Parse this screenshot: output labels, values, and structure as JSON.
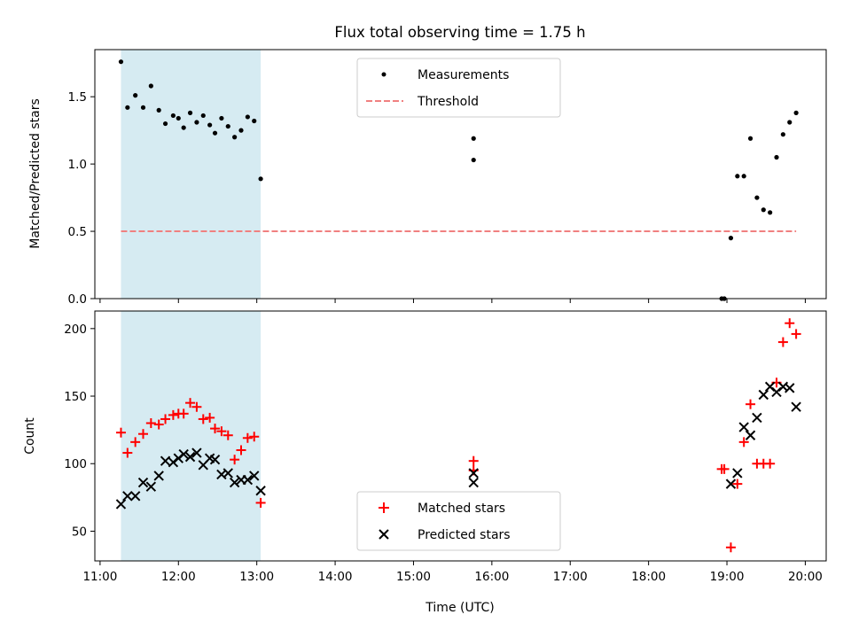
{
  "chart_data": [
    {
      "type": "scatter",
      "title": "Flux total observing time = 1.75 h",
      "xlabel": "",
      "ylabel": "Matched/Predicted stars",
      "xlim": [
        "10:56",
        "20:16"
      ],
      "ylim": [
        0,
        1.85
      ],
      "yticks": [
        0.0,
        0.5,
        1.0,
        1.5
      ],
      "ytick_labels": [
        "0.0",
        "0.5",
        "1.0",
        "1.5"
      ],
      "shaded_span": {
        "from": "11:16",
        "to": "13:03",
        "color": "#add8e6"
      },
      "legend_position": "upper center",
      "series": [
        {
          "name": "Measurements",
          "kind": "point",
          "color": "#000000",
          "points": [
            [
              "11:16",
              1.76
            ],
            [
              "11:21",
              1.42
            ],
            [
              "11:27",
              1.51
            ],
            [
              "11:33",
              1.42
            ],
            [
              "11:39",
              1.58
            ],
            [
              "11:45",
              1.4
            ],
            [
              "11:50",
              1.3
            ],
            [
              "11:56",
              1.36
            ],
            [
              "12:00",
              1.34
            ],
            [
              "12:04",
              1.27
            ],
            [
              "12:09",
              1.38
            ],
            [
              "12:14",
              1.31
            ],
            [
              "12:19",
              1.36
            ],
            [
              "12:24",
              1.29
            ],
            [
              "12:28",
              1.23
            ],
            [
              "12:33",
              1.34
            ],
            [
              "12:38",
              1.28
            ],
            [
              "12:43",
              1.2
            ],
            [
              "12:48",
              1.25
            ],
            [
              "12:53",
              1.35
            ],
            [
              "12:58",
              1.32
            ],
            [
              "13:03",
              0.89
            ],
            [
              "15:46",
              1.19
            ],
            [
              "15:46",
              1.03
            ],
            [
              "18:56",
              0.0
            ],
            [
              "18:58",
              0.0
            ],
            [
              "19:03",
              0.45
            ],
            [
              "19:08",
              0.91
            ],
            [
              "19:13",
              0.91
            ],
            [
              "19:18",
              1.19
            ],
            [
              "19:23",
              0.75
            ],
            [
              "19:28",
              0.66
            ],
            [
              "19:33",
              0.64
            ],
            [
              "19:38",
              1.05
            ],
            [
              "19:43",
              1.22
            ],
            [
              "19:48",
              1.31
            ],
            [
              "19:53",
              1.38
            ]
          ]
        },
        {
          "name": "Threshold",
          "kind": "dashed-line",
          "color": "#f08080",
          "points": [
            [
              "11:16",
              0.5
            ],
            [
              "19:53",
              0.5
            ]
          ]
        }
      ]
    },
    {
      "type": "scatter",
      "title": "",
      "xlabel": "Time (UTC)",
      "ylabel": "Count",
      "xlim": [
        "10:56",
        "20:16"
      ],
      "ylim": [
        28,
        213
      ],
      "yticks": [
        50,
        100,
        150,
        200
      ],
      "ytick_labels": [
        "50",
        "100",
        "150",
        "200"
      ],
      "xticks": [
        "11:00",
        "12:00",
        "13:00",
        "14:00",
        "15:00",
        "16:00",
        "17:00",
        "18:00",
        "19:00",
        "20:00"
      ],
      "shaded_span": {
        "from": "11:16",
        "to": "13:03",
        "color": "#add8e6"
      },
      "legend_position": "lower center",
      "series": [
        {
          "name": "Matched stars",
          "kind": "plus",
          "color": "#ff0000",
          "points": [
            [
              "11:16",
              123
            ],
            [
              "11:21",
              108
            ],
            [
              "11:27",
              116
            ],
            [
              "11:33",
              122
            ],
            [
              "11:39",
              130
            ],
            [
              "11:45",
              129
            ],
            [
              "11:50",
              133
            ],
            [
              "11:56",
              136
            ],
            [
              "12:00",
              137
            ],
            [
              "12:04",
              137
            ],
            [
              "12:09",
              145
            ],
            [
              "12:14",
              142
            ],
            [
              "12:19",
              133
            ],
            [
              "12:24",
              134
            ],
            [
              "12:28",
              126
            ],
            [
              "12:33",
              124
            ],
            [
              "12:38",
              121
            ],
            [
              "12:43",
              103
            ],
            [
              "12:48",
              110
            ],
            [
              "12:53",
              119
            ],
            [
              "12:58",
              120
            ],
            [
              "13:03",
              71
            ],
            [
              "15:46",
              102
            ],
            [
              "15:46",
              95
            ],
            [
              "18:56",
              96
            ],
            [
              "18:58",
              96
            ],
            [
              "19:03",
              38
            ],
            [
              "19:08",
              85
            ],
            [
              "19:13",
              116
            ],
            [
              "19:18",
              144
            ],
            [
              "19:23",
              100
            ],
            [
              "19:28",
              100
            ],
            [
              "19:33",
              100
            ],
            [
              "19:38",
              160
            ],
            [
              "19:43",
              190
            ],
            [
              "19:48",
              204
            ],
            [
              "19:53",
              196
            ]
          ]
        },
        {
          "name": "Predicted stars",
          "kind": "cross",
          "color": "#000000",
          "points": [
            [
              "11:16",
              70
            ],
            [
              "11:21",
              76
            ],
            [
              "11:27",
              76
            ],
            [
              "11:33",
              86
            ],
            [
              "11:39",
              83
            ],
            [
              "11:45",
              91
            ],
            [
              "11:50",
              102
            ],
            [
              "11:56",
              101
            ],
            [
              "12:00",
              104
            ],
            [
              "12:04",
              107
            ],
            [
              "12:09",
              105
            ],
            [
              "12:14",
              108
            ],
            [
              "12:19",
              99
            ],
            [
              "12:24",
              104
            ],
            [
              "12:28",
              103
            ],
            [
              "12:33",
              92
            ],
            [
              "12:38",
              93
            ],
            [
              "12:43",
              86
            ],
            [
              "12:48",
              88
            ],
            [
              "12:53",
              88
            ],
            [
              "12:58",
              91
            ],
            [
              "13:03",
              80
            ],
            [
              "15:46",
              86
            ],
            [
              "15:46",
              93
            ],
            [
              "19:03",
              85
            ],
            [
              "19:08",
              93
            ],
            [
              "19:13",
              127
            ],
            [
              "19:18",
              121
            ],
            [
              "19:23",
              134
            ],
            [
              "19:28",
              151
            ],
            [
              "19:33",
              157
            ],
            [
              "19:38",
              153
            ],
            [
              "19:43",
              157
            ],
            [
              "19:48",
              156
            ],
            [
              "19:53",
              142
            ]
          ]
        }
      ]
    }
  ]
}
